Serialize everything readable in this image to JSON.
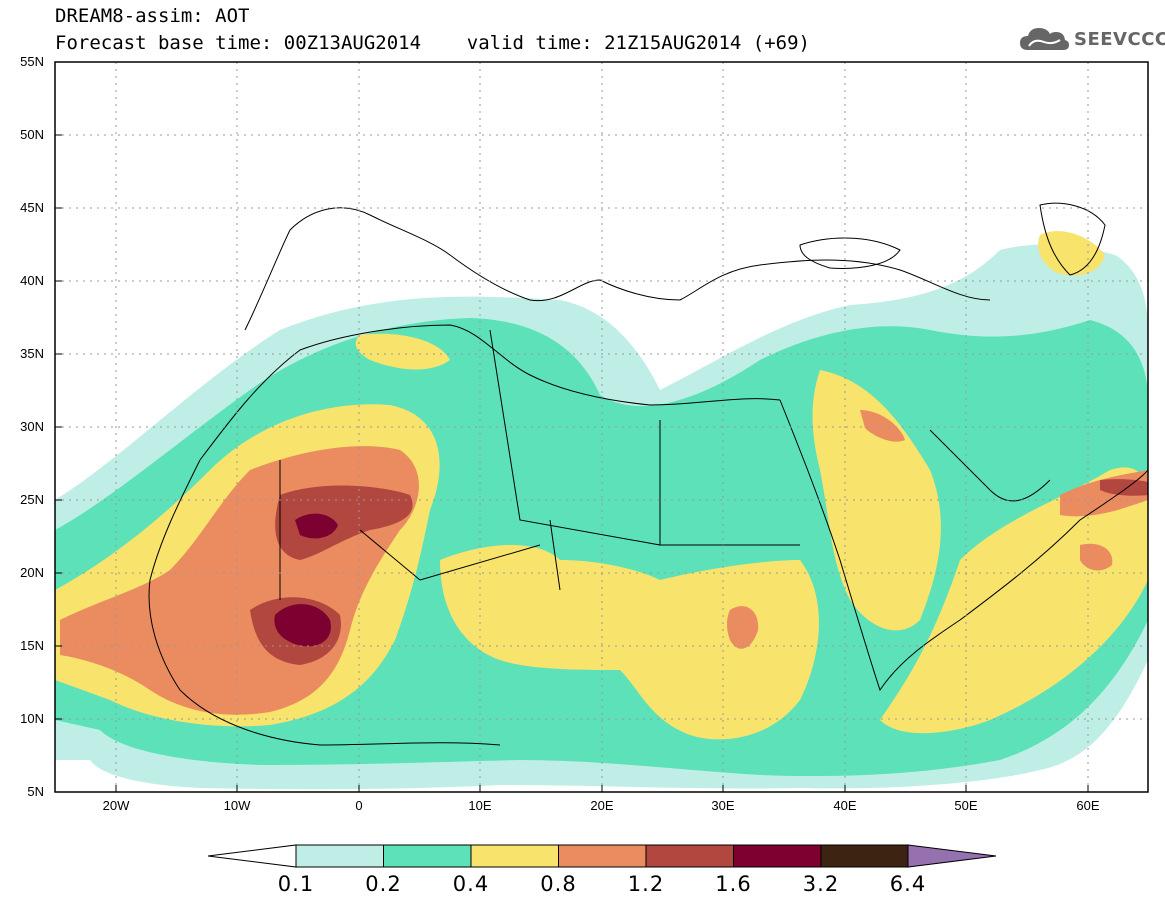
{
  "title_line1": "DREAM8-assim: AOT",
  "title_line2": "Forecast base time: 00Z13AUG2014    valid time: 21Z15AUG2014 (+69)",
  "brand": {
    "text": "SEEVCCC",
    "icon": "cloud-icon",
    "color": "#666666"
  },
  "map": {
    "lon_range": [
      -25,
      65
    ],
    "lat_range": [
      5,
      55
    ],
    "y_tick_labels": [
      "55N",
      "50N",
      "45N",
      "40N",
      "35N",
      "30N",
      "25N",
      "20N",
      "15N",
      "10N",
      "5N"
    ],
    "x_tick_labels": [
      "20W",
      "10W",
      "0",
      "10E",
      "20E",
      "30E",
      "40E",
      "50E",
      "60E"
    ]
  },
  "colorbar": {
    "labels": [
      "0.1",
      "0.2",
      "0.4",
      "0.8",
      "1.2",
      "1.6",
      "3.2",
      "6.4"
    ],
    "colors": [
      "#ffffff",
      "#bfeee6",
      "#5ce1b9",
      "#f8e36d",
      "#ea8c60",
      "#b2473f",
      "#7c0030",
      "#3c2312",
      "#9671b0"
    ]
  }
}
